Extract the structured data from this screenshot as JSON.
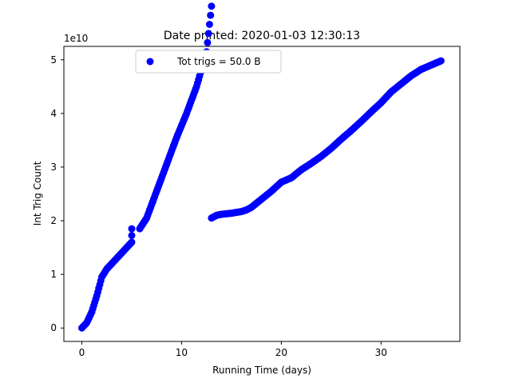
{
  "chart_data": {
    "type": "scatter",
    "title": "Date printed: 2020-01-03 12:30:13",
    "xlabel": "Running Time (days)",
    "ylabel": "Int Trig Count",
    "y_offset_label": "1e10",
    "xlim": [
      -1.8,
      37.9
    ],
    "ylim": [
      -0.25,
      5.25
    ],
    "y_scale_multiplier": 10000000000.0,
    "xticks": [
      0,
      10,
      20,
      30
    ],
    "yticks": [
      0,
      1,
      2,
      3,
      4,
      5
    ],
    "xtick_labels": [
      "0",
      "10",
      "20",
      "30"
    ],
    "ytick_labels": [
      "0",
      "1",
      "2",
      "3",
      "4",
      "5"
    ],
    "grid": false,
    "legend": {
      "placement": "top-left",
      "entries": [
        "Tot trigs = 50.0 B"
      ]
    },
    "series": [
      {
        "name": "Tot trigs = 50.0 B",
        "color": "#0000ff",
        "marker": "circle",
        "segments": [
          [
            [
              0.0,
              0.0
            ],
            [
              0.5,
              0.1
            ],
            [
              1.0,
              0.3
            ],
            [
              1.5,
              0.6
            ],
            [
              2.0,
              0.95
            ],
            [
              2.5,
              1.1
            ],
            [
              3.0,
              1.2
            ],
            [
              3.5,
              1.3
            ],
            [
              4.0,
              1.4
            ],
            [
              4.5,
              1.5
            ],
            [
              5.0,
              1.6
            ],
            [
              5.0,
              1.85
            ]
          ],
          [
            [
              5.8,
              1.85
            ],
            [
              6.5,
              2.05
            ],
            [
              7.5,
              2.55
            ],
            [
              8.5,
              3.05
            ],
            [
              9.5,
              3.55
            ],
            [
              10.5,
              4.0
            ],
            [
              11.5,
              4.5
            ],
            [
              12.5,
              5.15
            ],
            [
              13.0,
              6.0
            ]
          ],
          [
            [
              13.0,
              2.05
            ],
            [
              13.5,
              2.1
            ],
            [
              14.0,
              2.12
            ],
            [
              15.0,
              2.14
            ],
            [
              16.0,
              2.17
            ],
            [
              16.5,
              2.2
            ],
            [
              17.0,
              2.25
            ],
            [
              18.0,
              2.4
            ],
            [
              19.0,
              2.55
            ],
            [
              20.0,
              2.72
            ],
            [
              21.0,
              2.8
            ],
            [
              22.0,
              2.95
            ],
            [
              23.0,
              3.07
            ],
            [
              24.0,
              3.2
            ],
            [
              25.0,
              3.35
            ],
            [
              26.0,
              3.52
            ],
            [
              27.0,
              3.68
            ],
            [
              28.0,
              3.85
            ],
            [
              29.0,
              4.03
            ],
            [
              30.0,
              4.2
            ],
            [
              31.0,
              4.4
            ],
            [
              32.0,
              4.55
            ],
            [
              33.0,
              4.7
            ],
            [
              34.0,
              4.82
            ],
            [
              35.0,
              4.9
            ],
            [
              36.0,
              4.98
            ]
          ]
        ]
      }
    ]
  }
}
